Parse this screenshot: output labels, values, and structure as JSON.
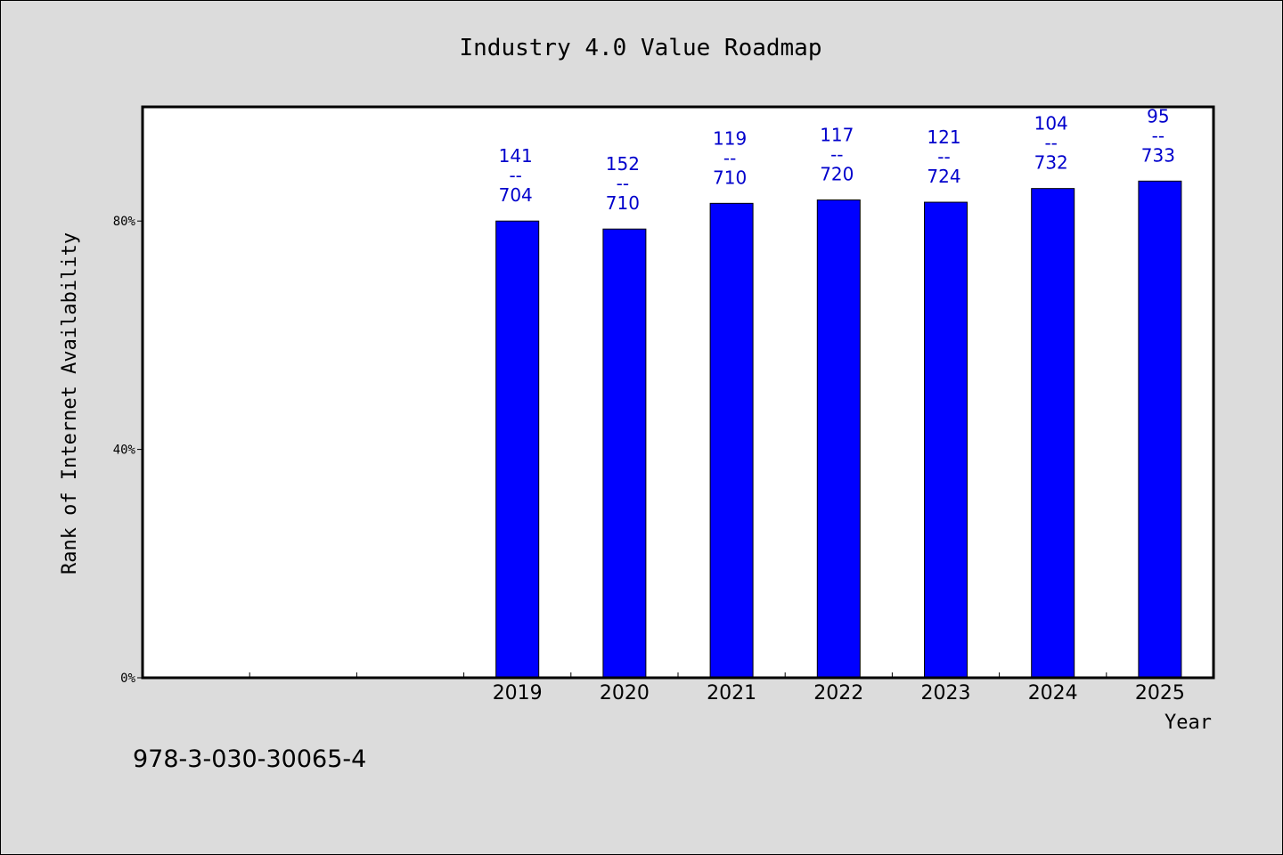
{
  "chart_data": {
    "type": "bar",
    "title": "Industry 4.0 Value Roadmap",
    "xlabel": "Year",
    "ylabel": "Rank of Internet Availability",
    "categories": [
      "",
      "",
      "",
      "2019",
      "2020",
      "2021",
      "2022",
      "2023",
      "2024",
      "2025"
    ],
    "series": [
      {
        "values": [
          null,
          null,
          null,
          80.0,
          78.6,
          83.1,
          83.7,
          83.3,
          85.7,
          87.0
        ],
        "labels": [
          null,
          null,
          null,
          [
            "141",
            "--",
            "704"
          ],
          [
            "152",
            "--",
            "710"
          ],
          [
            "119",
            "--",
            "710"
          ],
          [
            "117",
            "--",
            "720"
          ],
          [
            "121",
            "--",
            "724"
          ],
          [
            "104",
            "--",
            "732"
          ],
          [
            "95",
            "--",
            "733"
          ]
        ]
      }
    ],
    "yticks": [
      "0%",
      "40%",
      "80%"
    ],
    "ytick_values": [
      0,
      40,
      80
    ],
    "ylim": [
      0,
      100
    ],
    "grid": false,
    "legend": "none",
    "colors": {
      "bar": "#0000ff",
      "label": "#0000cc",
      "background": "#dcdcdc",
      "plot": "#ffffff"
    }
  },
  "footer": {
    "code": "978-3-030-30065-4"
  }
}
